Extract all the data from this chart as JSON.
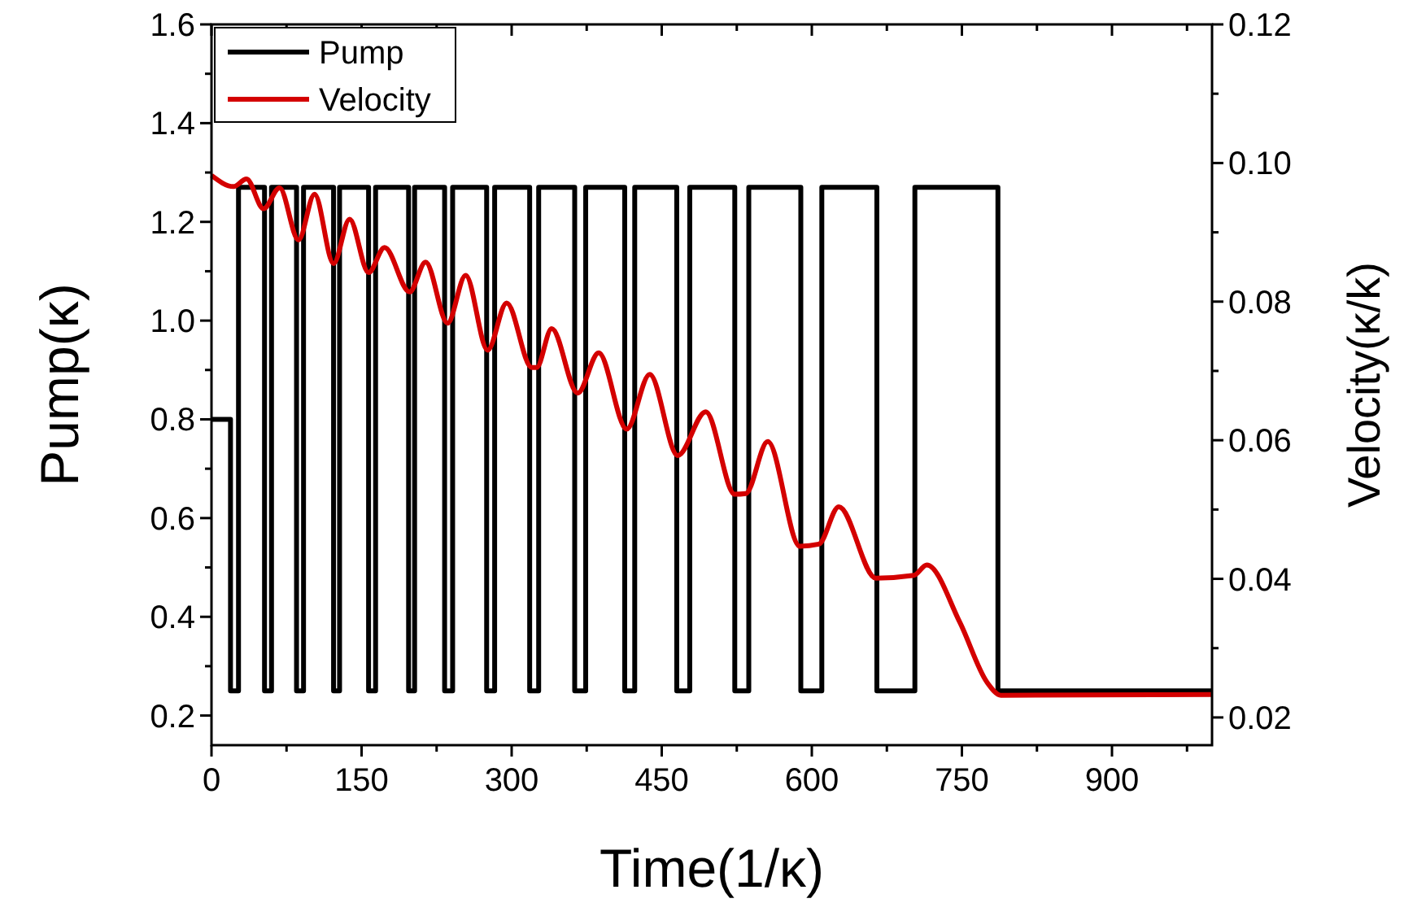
{
  "chart_data": {
    "type": "line",
    "xlabel": "Time(1/κ)",
    "ylabel": "Pump(κ)",
    "y2label": "Velocity(κ/k)",
    "xlim": [
      0,
      1000
    ],
    "xticks": [
      0,
      {
        "value": 75,
        "label": null
      },
      150,
      {
        "value": 225,
        "label": null
      },
      300,
      {
        "value": 375,
        "label": null
      },
      450,
      {
        "value": 525,
        "label": null
      },
      600,
      {
        "value": 675,
        "label": null
      },
      750,
      {
        "value": 825,
        "label": null
      },
      900,
      {
        "value": 975,
        "label": null
      }
    ],
    "ylim": [
      0.14,
      1.6
    ],
    "yticks": [
      {
        "value": 0.2,
        "label": "0.2"
      },
      {
        "value": 0.3,
        "label": null
      },
      {
        "value": 0.4,
        "label": "0.4"
      },
      {
        "value": 0.5,
        "label": null
      },
      {
        "value": 0.6,
        "label": "0.6"
      },
      {
        "value": 0.7,
        "label": null
      },
      {
        "value": 0.8,
        "label": "0.8"
      },
      {
        "value": 0.9,
        "label": null
      },
      {
        "value": 1.0,
        "label": "1.0"
      },
      {
        "value": 1.1,
        "label": null
      },
      {
        "value": 1.2,
        "label": "1.2"
      },
      {
        "value": 1.3,
        "label": null
      },
      {
        "value": 1.4,
        "label": "1.4"
      },
      {
        "value": 1.5,
        "label": null
      },
      {
        "value": 1.6,
        "label": "1.6"
      }
    ],
    "y2lim": [
      0.016,
      0.12
    ],
    "y2ticks": [
      {
        "value": 0.02,
        "label": "0.02"
      },
      {
        "value": 0.03,
        "label": null
      },
      {
        "value": 0.04,
        "label": "0.04"
      },
      {
        "value": 0.05,
        "label": null
      },
      {
        "value": 0.06,
        "label": "0.06"
      },
      {
        "value": 0.07,
        "label": null
      },
      {
        "value": 0.08,
        "label": "0.08"
      },
      {
        "value": 0.09,
        "label": null
      },
      {
        "value": 0.1,
        "label": "0.10"
      },
      {
        "value": 0.11,
        "label": null
      },
      {
        "value": 0.12,
        "label": "0.12"
      }
    ],
    "grid": false,
    "legend": "top left",
    "marker": "none",
    "line_style": "solid",
    "series": [
      {
        "name": "Pump",
        "type": "step",
        "color": "#000000",
        "x": [
          0,
          19,
          27,
          53,
          60,
          85,
          92,
          122,
          128,
          157,
          164,
          197,
          203,
          233,
          241,
          275,
          283,
          318,
          327,
          363,
          374,
          413,
          423,
          465,
          478,
          523,
          537,
          589,
          610,
          665,
          703,
          786,
          1000
        ],
        "values": [
          0.8,
          0.25,
          1.27,
          0.25,
          1.27,
          0.25,
          1.27,
          0.25,
          1.27,
          0.25,
          1.27,
          0.25,
          1.27,
          0.25,
          1.27,
          0.25,
          1.27,
          0.25,
          1.27,
          0.25,
          1.27,
          0.25,
          1.27,
          0.25,
          1.27,
          0.25,
          1.27,
          0.25,
          1.27,
          0.25,
          1.27,
          0.25,
          0.25
        ]
      },
      {
        "name": "Velocity",
        "axis": "y2",
        "color": "#d40000",
        "x": [
          0,
          22,
          35,
          52,
          68,
          87,
          103,
          122,
          138,
          157,
          173,
          198,
          214,
          236,
          254,
          276,
          295,
          320,
          325,
          340,
          366,
          387,
          415,
          438,
          466,
          494,
          523,
          534,
          556,
          588,
          607,
          627,
          664,
          702,
          715,
          748,
          775,
          789,
          1000
        ],
        "values": [
          0.0982,
          0.0966,
          0.0977,
          0.0934,
          0.0964,
          0.0889,
          0.0955,
          0.0855,
          0.0919,
          0.0842,
          0.0878,
          0.0814,
          0.0857,
          0.0769,
          0.0838,
          0.073,
          0.0798,
          0.0705,
          0.0705,
          0.0761,
          0.0668,
          0.0726,
          0.0616,
          0.0695,
          0.0578,
          0.0641,
          0.0522,
          0.0523,
          0.0598,
          0.0447,
          0.045,
          0.0504,
          0.0401,
          0.0405,
          0.042,
          0.0337,
          0.0251,
          0.0232,
          0.0233
        ]
      }
    ]
  }
}
